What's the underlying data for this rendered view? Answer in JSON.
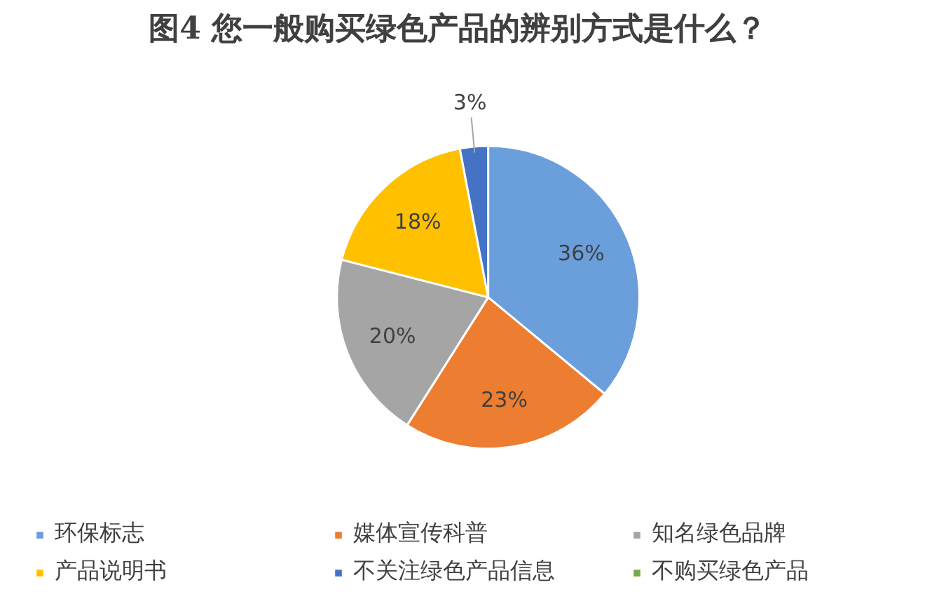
{
  "chart_data": {
    "type": "pie",
    "title": "图4  您一般购买绿色产品的辨别方式是什么？",
    "categories": [
      "环保标志",
      "媒体宣传科普",
      "知名绿色品牌",
      "产品说明书",
      "不关注绿色产品信息",
      "不购买绿色产品"
    ],
    "values": [
      36,
      23,
      20,
      18,
      3,
      0
    ],
    "colors": [
      "#6a9fdc",
      "#ed7d31",
      "#a5a5a5",
      "#ffc000",
      "#4472c4",
      "#70ad47"
    ],
    "value_labels": [
      "36%",
      "23%",
      "20%",
      "18%",
      "3%",
      null
    ],
    "legend": "bottom"
  }
}
